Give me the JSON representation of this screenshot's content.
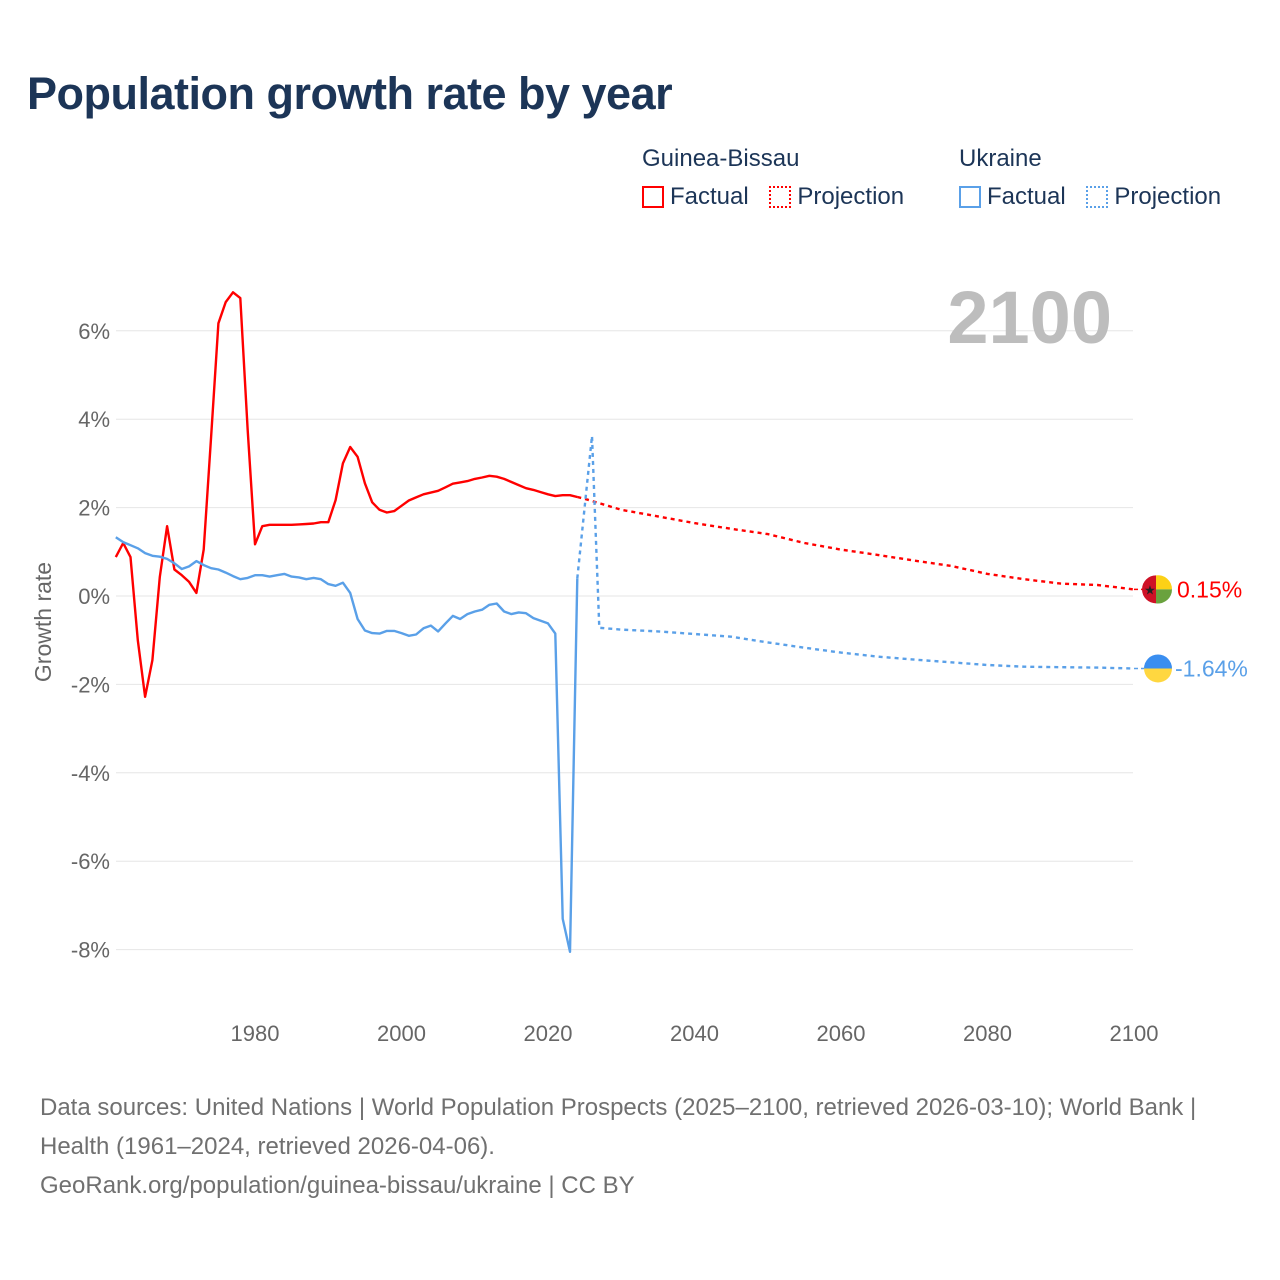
{
  "title": "Population growth rate by year",
  "legend": [
    {
      "name": "Guinea-Bissau",
      "color": "#ff0000",
      "factual_label": "Factual",
      "projection_label": "Projection"
    },
    {
      "name": "Ukraine",
      "color": "#5aa0e8",
      "factual_label": "Factual",
      "projection_label": "Projection"
    }
  ],
  "footer": {
    "sources": "Data sources: United Nations | World Population Prospects (2025–2100, retrieved 2026-03-10); World Bank | Health (1961–2024, retrieved 2026-04-06).",
    "credit": "GeoRank.org/population/guinea-bissau/ukraine | CC BY"
  },
  "chart_data": {
    "type": "line",
    "title": "Population growth rate by year",
    "xlabel": "",
    "ylabel": "Growth rate",
    "year_label": "2100",
    "xlim": [
      1961,
      2100
    ],
    "ylim": [
      -9,
      7
    ],
    "x_ticks": [
      1980,
      2000,
      2020,
      2040,
      2060,
      2080,
      2100
    ],
    "y_ticks": [
      6,
      4,
      2,
      0,
      -2,
      -4,
      -6,
      -8
    ],
    "y_tick_labels": [
      "6%",
      "4%",
      "2%",
      "0%",
      "-2%",
      "-4%",
      "-6%",
      "-8%"
    ],
    "grid": true,
    "legend_position": "top-right",
    "series": [
      {
        "name": "Guinea-Bissau",
        "color": "#ff0000",
        "end_label": "0.15%",
        "factual": {
          "x": [
            1961,
            1962,
            1963,
            1964,
            1965,
            1966,
            1967,
            1968,
            1969,
            1970,
            1971,
            1972,
            1973,
            1974,
            1975,
            1976,
            1977,
            1978,
            1979,
            1980,
            1981,
            1982,
            1983,
            1984,
            1985,
            1986,
            1987,
            1988,
            1989,
            1990,
            1991,
            1992,
            1993,
            1994,
            1995,
            1996,
            1997,
            1998,
            1999,
            2000,
            2001,
            2002,
            2003,
            2004,
            2005,
            2006,
            2007,
            2008,
            2009,
            2010,
            2011,
            2012,
            2013,
            2014,
            2015,
            2016,
            2017,
            2018,
            2019,
            2020,
            2021,
            2022,
            2023,
            2024
          ],
          "y": [
            0.88,
            1.2,
            0.88,
            -1.0,
            -2.28,
            -1.45,
            0.43,
            1.58,
            0.6,
            0.47,
            0.32,
            0.07,
            1.05,
            3.6,
            6.17,
            6.65,
            6.87,
            6.74,
            3.75,
            1.17,
            1.58,
            1.61,
            1.61,
            1.61,
            1.61,
            1.62,
            1.63,
            1.64,
            1.67,
            1.67,
            2.17,
            3.0,
            3.37,
            3.15,
            2.55,
            2.12,
            1.95,
            1.89,
            1.92,
            2.04,
            2.16,
            2.23,
            2.3,
            2.34,
            2.38,
            2.46,
            2.54,
            2.57,
            2.6,
            2.65,
            2.68,
            2.72,
            2.7,
            2.65,
            2.58,
            2.51,
            2.44,
            2.4,
            2.35,
            2.3,
            2.26,
            2.28,
            2.28,
            2.24
          ]
        },
        "projection": {
          "x": [
            2024,
            2025,
            2030,
            2035,
            2040,
            2045,
            2050,
            2055,
            2060,
            2065,
            2070,
            2075,
            2080,
            2085,
            2090,
            2095,
            2100
          ],
          "y": [
            2.24,
            2.2,
            1.95,
            1.8,
            1.65,
            1.52,
            1.4,
            1.2,
            1.05,
            0.93,
            0.8,
            0.68,
            0.5,
            0.38,
            0.28,
            0.25,
            0.15
          ]
        }
      },
      {
        "name": "Ukraine",
        "color": "#5aa0e8",
        "end_label": "-1.64%",
        "factual": {
          "x": [
            1961,
            1962,
            1963,
            1964,
            1965,
            1966,
            1967,
            1968,
            1969,
            1970,
            1971,
            1972,
            1973,
            1974,
            1975,
            1976,
            1977,
            1978,
            1979,
            1980,
            1981,
            1982,
            1983,
            1984,
            1985,
            1986,
            1987,
            1988,
            1989,
            1990,
            1991,
            1992,
            1993,
            1994,
            1995,
            1996,
            1997,
            1998,
            1999,
            2000,
            2001,
            2002,
            2003,
            2004,
            2005,
            2006,
            2007,
            2008,
            2009,
            2010,
            2011,
            2012,
            2013,
            2014,
            2015,
            2016,
            2017,
            2018,
            2019,
            2020,
            2021,
            2022,
            2023,
            2024
          ],
          "y": [
            1.33,
            1.22,
            1.15,
            1.08,
            0.97,
            0.91,
            0.89,
            0.84,
            0.74,
            0.61,
            0.67,
            0.79,
            0.7,
            0.63,
            0.6,
            0.53,
            0.45,
            0.38,
            0.41,
            0.47,
            0.47,
            0.44,
            0.47,
            0.5,
            0.44,
            0.42,
            0.38,
            0.41,
            0.38,
            0.27,
            0.23,
            0.3,
            0.07,
            -0.52,
            -0.78,
            -0.84,
            -0.85,
            -0.79,
            -0.79,
            -0.84,
            -0.9,
            -0.87,
            -0.73,
            -0.67,
            -0.8,
            -0.62,
            -0.45,
            -0.52,
            -0.41,
            -0.35,
            -0.31,
            -0.2,
            -0.17,
            -0.35,
            -0.41,
            -0.37,
            -0.39,
            -0.5,
            -0.56,
            -0.62,
            -0.85,
            -7.3,
            -8.05,
            0.4
          ]
        },
        "projection": {
          "x": [
            2024,
            2025,
            2026,
            2027,
            2030,
            2035,
            2040,
            2045,
            2050,
            2055,
            2060,
            2065,
            2070,
            2075,
            2080,
            2085,
            2090,
            2095,
            2100
          ],
          "y": [
            0.4,
            2.0,
            3.62,
            -0.72,
            -0.76,
            -0.8,
            -0.86,
            -0.92,
            -1.05,
            -1.17,
            -1.28,
            -1.37,
            -1.44,
            -1.5,
            -1.56,
            -1.6,
            -1.61,
            -1.62,
            -1.64
          ]
        }
      }
    ]
  }
}
